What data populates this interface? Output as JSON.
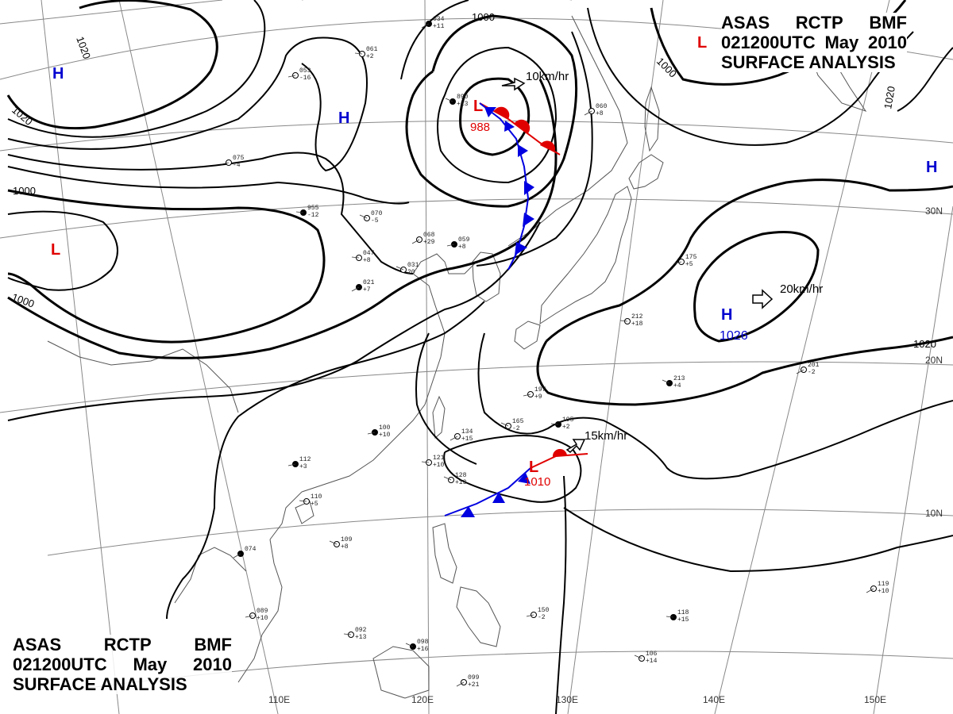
{
  "title_top": {
    "line1": [
      "ASAS",
      "RCTP",
      "BMF"
    ],
    "line2": [
      "021200UTC",
      "May",
      "2010"
    ],
    "line3": "SURFACE  ANALYSIS"
  },
  "title_bottom": {
    "line1": [
      "ASAS",
      "RCTP",
      "BMF"
    ],
    "line2": [
      "021200UTC",
      "May",
      "2010"
    ],
    "line3": "SURFACE  ANALYSIS"
  },
  "pressure_centers": {
    "low_north": {
      "symbol": "L",
      "value": "988"
    },
    "low_south": {
      "symbol": "L",
      "value": "1010"
    },
    "high_pacific": {
      "symbol": "H",
      "value": "1026"
    },
    "high_west_upper": {
      "symbol": "H"
    },
    "high_west_mid": {
      "symbol": "H"
    },
    "high_east": {
      "symbol": "H"
    },
    "low_west": {
      "symbol": "L"
    },
    "low_top_right": {
      "symbol": "L"
    }
  },
  "motion_vectors": {
    "north_low": "10km/hr",
    "pacific_high": "20km/hr",
    "south_low": "15km/hr"
  },
  "isobar_labels": [
    "1020",
    "1020",
    "1000",
    "1000",
    "1000",
    "1000",
    "1020",
    "1020"
  ],
  "longitude_labels": [
    "110E",
    "120E",
    "130E",
    "140E",
    "150E"
  ],
  "latitude_labels": [
    "30N",
    "20N",
    "10N"
  ],
  "stations": [
    {
      "t": "034",
      "p": "+11"
    },
    {
      "t": "053",
      "p": "-16"
    },
    {
      "t": "061",
      "p": "+2"
    },
    {
      "t": "890",
      "p": "+13"
    },
    {
      "t": "060",
      "p": "+8"
    },
    {
      "t": "075",
      "p": "-4"
    },
    {
      "t": "955",
      "p": "-12"
    },
    {
      "t": "070",
      "p": "-5"
    },
    {
      "t": "068",
      "p": "+29"
    },
    {
      "t": "059",
      "p": "+8"
    },
    {
      "t": "047",
      "p": "+8"
    },
    {
      "t": "031",
      "p": "20"
    },
    {
      "t": "021",
      "p": "+7"
    },
    {
      "t": "175",
      "p": "+5"
    },
    {
      "t": "212",
      "p": "+18"
    },
    {
      "t": "213",
      "p": "+4"
    },
    {
      "t": "201",
      "p": "-2"
    },
    {
      "t": "197",
      "p": "+9"
    },
    {
      "t": "195",
      "p": "+2"
    },
    {
      "t": "165",
      "p": "-2"
    },
    {
      "t": "134",
      "p": "+15"
    },
    {
      "t": "112",
      "p": "+3"
    },
    {
      "t": "110",
      "p": "+5"
    },
    {
      "t": "109",
      "p": "+8"
    },
    {
      "t": "074",
      "p": ""
    },
    {
      "t": "089",
      "p": "+10"
    },
    {
      "t": "092",
      "p": "+13"
    },
    {
      "t": "098",
      "p": "+16"
    },
    {
      "t": "099",
      "p": "+21"
    },
    {
      "t": "150",
      "p": "-2"
    },
    {
      "t": "118",
      "p": "+15"
    },
    {
      "t": "106",
      "p": "+14"
    },
    {
      "t": "119",
      "p": "+10"
    },
    {
      "t": "100",
      "p": "+10"
    },
    {
      "t": "121",
      "p": "+10"
    },
    {
      "t": "128",
      "p": "+13"
    }
  ],
  "colors": {
    "isobar": "#000000",
    "warm_front": "#e00000",
    "cold_front": "#0000e0",
    "low_symbol": "#e00000",
    "high_symbol": "#0000d0",
    "coast": "#555555",
    "grid": "#888888"
  }
}
